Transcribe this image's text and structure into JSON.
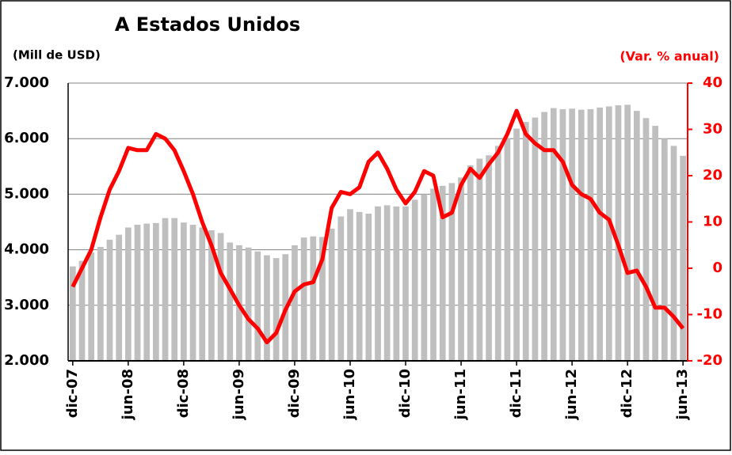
{
  "chart_data": {
    "type": "bar_line",
    "title": "A Estados Unidos",
    "y_label": "(Mill de USD)",
    "y2_label": "(Var. % anual)",
    "categories": [
      "dic-07",
      null,
      null,
      null,
      null,
      null,
      "jun-08",
      null,
      null,
      null,
      null,
      null,
      "dic-08",
      null,
      null,
      null,
      null,
      null,
      "jun-09",
      null,
      null,
      null,
      null,
      null,
      "dic-09",
      null,
      null,
      null,
      null,
      null,
      "jun-10",
      null,
      null,
      null,
      null,
      null,
      "dic-10",
      null,
      null,
      null,
      null,
      null,
      "jun-11",
      null,
      null,
      null,
      null,
      null,
      "dic-11",
      null,
      null,
      null,
      null,
      null,
      "jun-12",
      null,
      null,
      null,
      null,
      null,
      "dic-12",
      null,
      null,
      null,
      null,
      null,
      "jun-13"
    ],
    "series": [
      {
        "type": "bar",
        "axis": "y",
        "color": "#bfbfbf",
        "values": [
          3700,
          3800,
          3950,
          4050,
          4180,
          4270,
          4400,
          4450,
          4470,
          4480,
          4570,
          4570,
          4490,
          4450,
          4400,
          4350,
          4300,
          4130,
          4080,
          4040,
          3970,
          3900,
          3850,
          3920,
          4080,
          4220,
          4240,
          4230,
          4380,
          4600,
          4730,
          4680,
          4650,
          4780,
          4800,
          4780,
          4780,
          4900,
          5000,
          5100,
          5150,
          5200,
          5300,
          5520,
          5640,
          5700,
          5870,
          6000,
          6180,
          6300,
          6380,
          6480,
          6550,
          6530,
          6540,
          6520,
          6530,
          6560,
          6580,
          6600,
          6610,
          6500,
          6370,
          6230,
          6000,
          5870,
          5690
        ]
      },
      {
        "type": "line",
        "axis": "y2",
        "color": "#ff0000",
        "values": [
          -4,
          0,
          4,
          11,
          17,
          21,
          26,
          25.5,
          25.5,
          29,
          28,
          25.5,
          21,
          16,
          10,
          5,
          -1,
          -4.5,
          -8,
          -11,
          -13,
          -16,
          -14,
          -9,
          -5,
          -3.5,
          -3,
          2,
          13,
          16.5,
          16,
          17.5,
          23,
          25,
          21.5,
          17,
          14,
          16.5,
          21,
          20,
          11,
          12,
          18,
          21.5,
          19.5,
          22.5,
          25,
          29,
          34,
          29,
          27,
          25.5,
          25.5,
          23,
          18,
          16,
          15,
          12,
          10.5,
          5,
          -1,
          -0.5,
          -4,
          -8.5,
          -8.5,
          -10.5,
          -13
        ]
      }
    ],
    "ylim": [
      2000,
      7000
    ],
    "yticks": [
      {
        "value": 2000,
        "label": "2.000"
      },
      {
        "value": 3000,
        "label": "3.000"
      },
      {
        "value": 4000,
        "label": "4.000"
      },
      {
        "value": 5000,
        "label": "5.000"
      },
      {
        "value": 6000,
        "label": "6.000"
      },
      {
        "value": 7000,
        "label": "7.000"
      }
    ],
    "y2lim": [
      -20,
      40
    ],
    "y2ticks": [
      -20,
      -10,
      0,
      10,
      20,
      30,
      40
    ],
    "y2_color": "#ff0000",
    "grid": true
  }
}
